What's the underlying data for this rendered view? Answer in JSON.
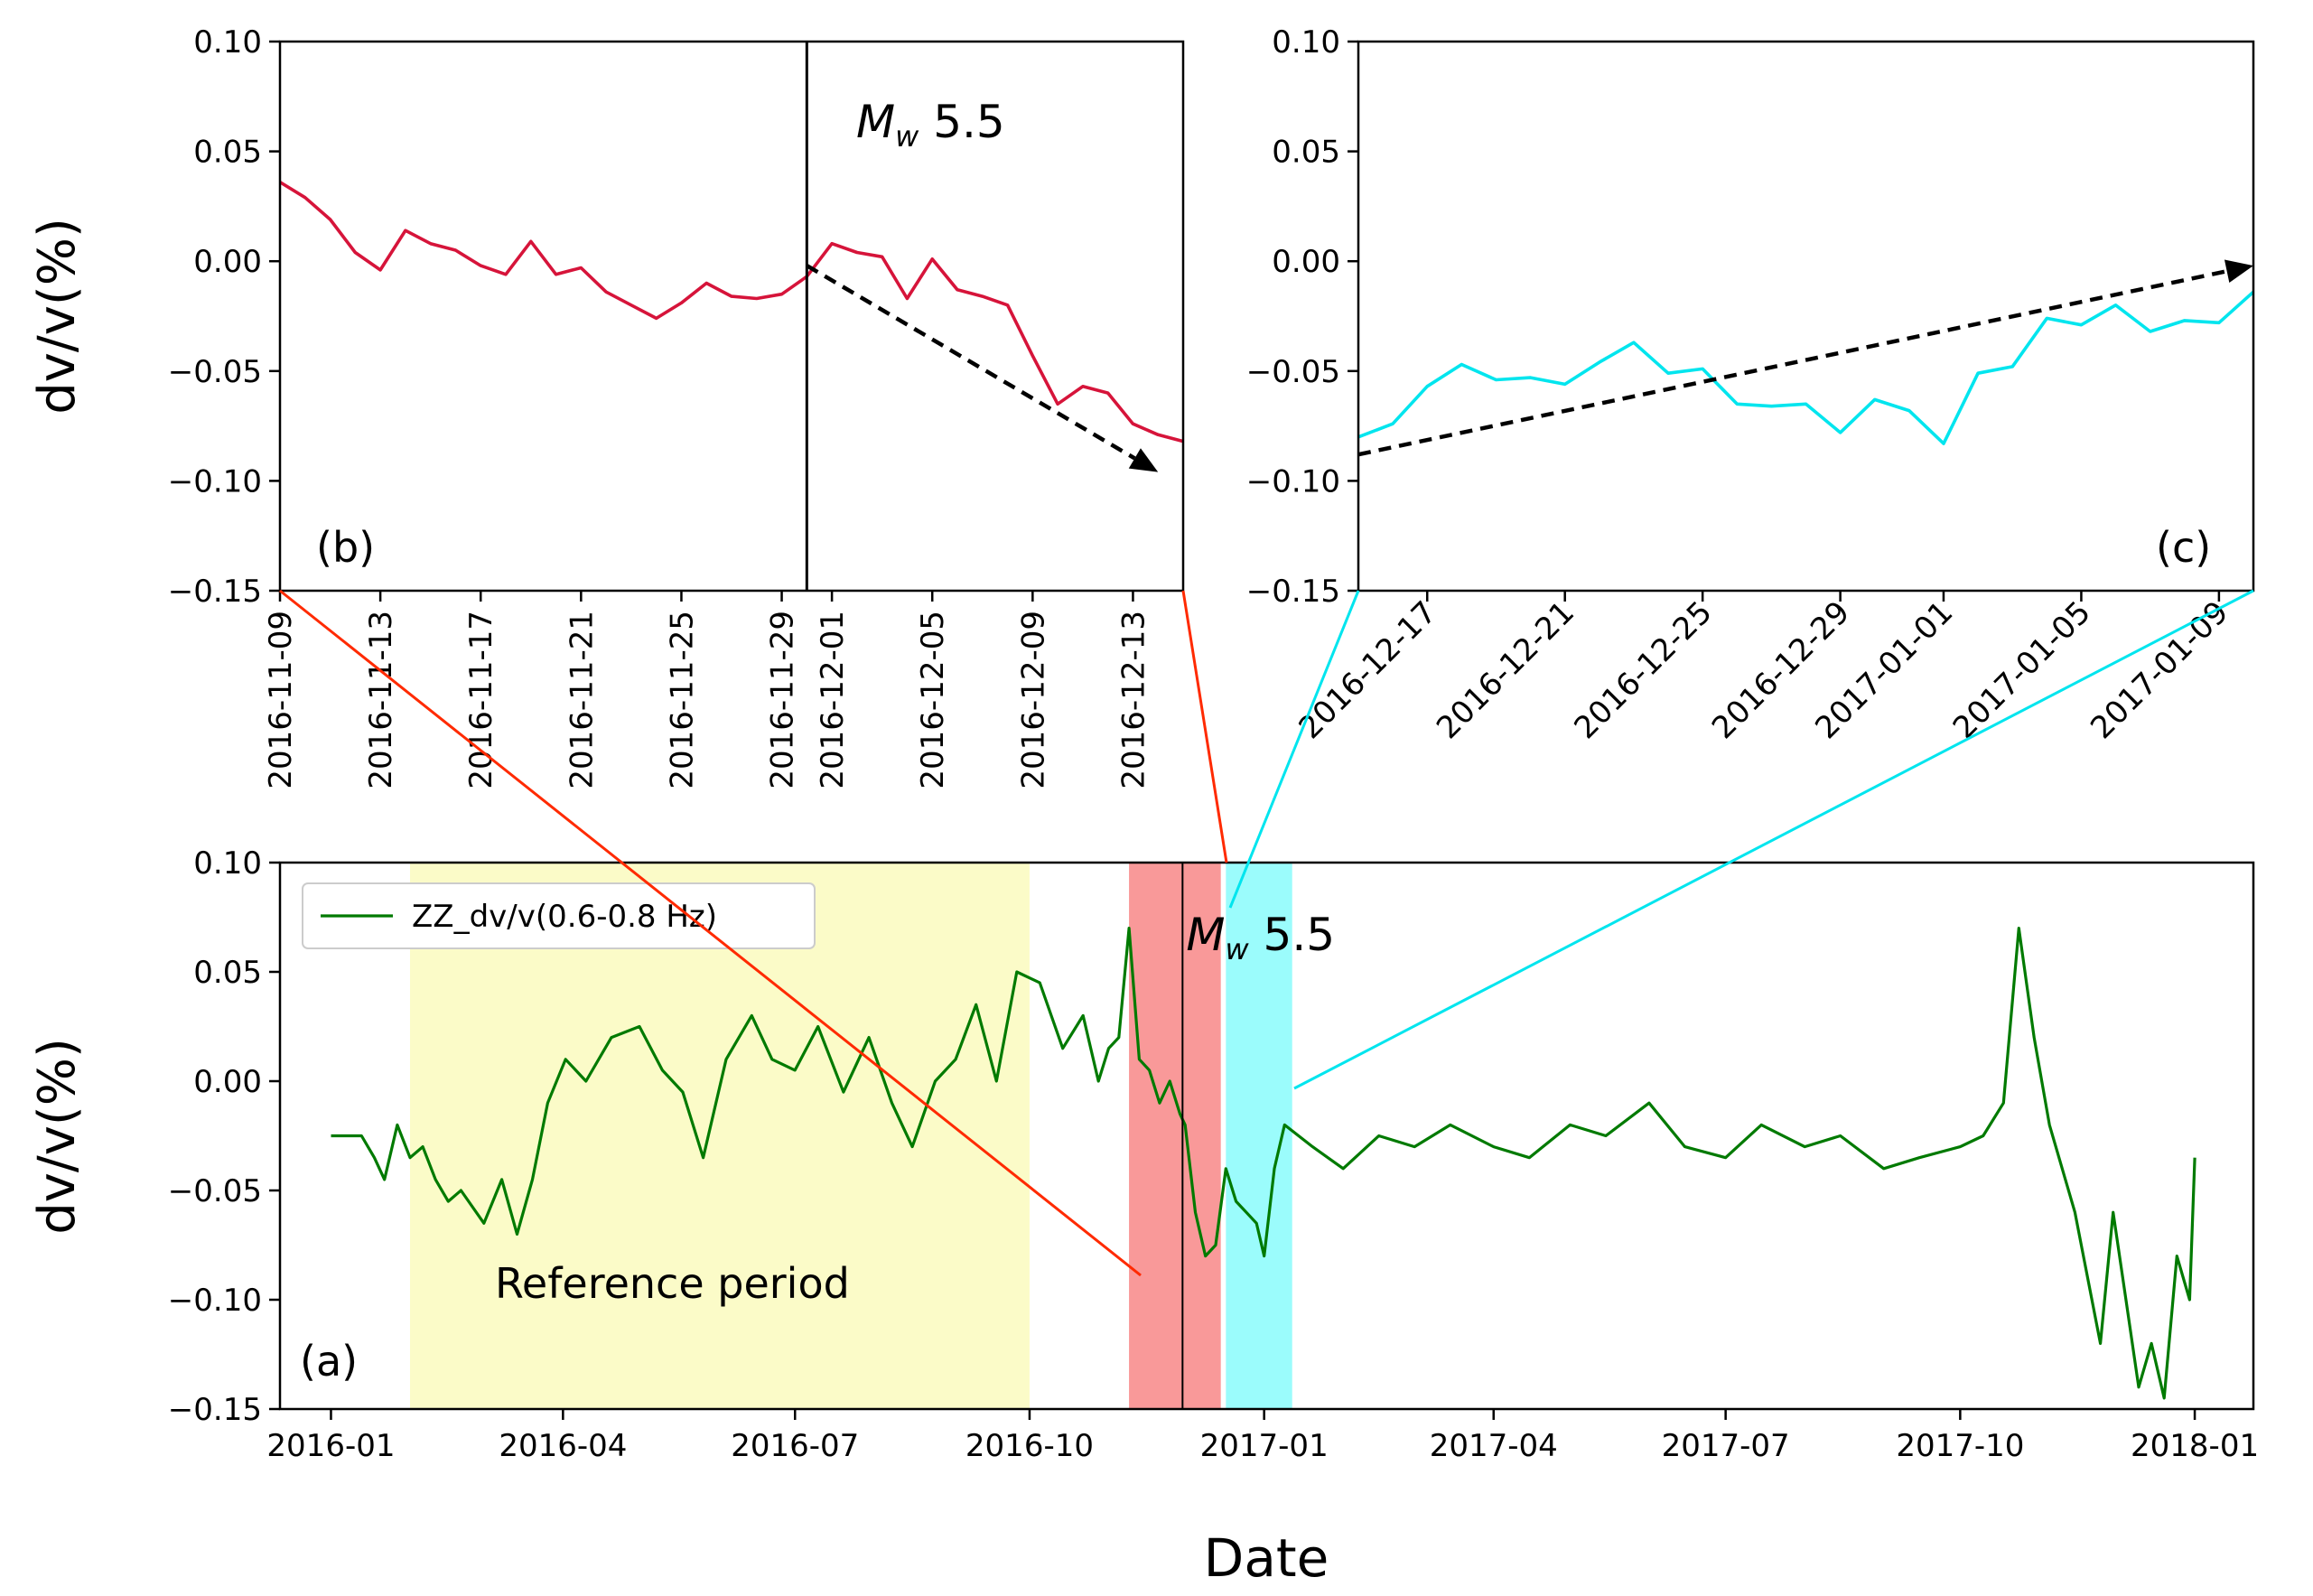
{
  "figure": {
    "xlabel": "Date",
    "ylabel_top": "dv/v(%)",
    "ylabel_bottom": "dv/v(%)"
  },
  "chart_data": [
    {
      "id": "a",
      "type": "line",
      "panel_label": "(a)",
      "ylabel": "dv/v(%)",
      "xlabel": "Date",
      "ylim": [
        -0.15,
        0.1
      ],
      "yticks": [
        0.1,
        0.05,
        0.0,
        -0.05,
        -0.1,
        -0.15
      ],
      "ytick_labels": [
        "0.10",
        "0.05",
        "0.00",
        "−0.05",
        "−0.10",
        "−0.15"
      ],
      "xlim": [
        "2015-12-12",
        "2018-01-24"
      ],
      "xticks": [
        "2016-01-01",
        "2016-04-01",
        "2016-07-01",
        "2016-10-01",
        "2017-01-01",
        "2017-04-01",
        "2017-07-01",
        "2017-10-01",
        "2018-01-01"
      ],
      "xtick_labels": [
        "2016-01",
        "2016-04",
        "2016-07",
        "2016-10",
        "2017-01",
        "2017-04",
        "2017-07",
        "2017-10",
        "2018-01"
      ],
      "legend": {
        "position": "top-left",
        "entries": [
          "ZZ_dv/v(0.6-0.8 Hz)"
        ]
      },
      "series": [
        {
          "name": "ZZ_dv/v(0.6-0.8 Hz)",
          "color": "#007a00",
          "x": [
            "2016-01-01",
            "2016-01-13",
            "2016-01-18",
            "2016-01-22",
            "2016-01-27",
            "2016-02-01",
            "2016-02-06",
            "2016-02-11",
            "2016-02-16",
            "2016-02-21",
            "2016-03-01",
            "2016-03-08",
            "2016-03-14",
            "2016-03-20",
            "2016-03-26",
            "2016-04-02",
            "2016-04-10",
            "2016-04-20",
            "2016-05-01",
            "2016-05-10",
            "2016-05-18",
            "2016-05-26",
            "2016-06-04",
            "2016-06-14",
            "2016-06-22",
            "2016-07-01",
            "2016-07-10",
            "2016-07-20",
            "2016-07-30",
            "2016-08-08",
            "2016-08-16",
            "2016-08-25",
            "2016-09-02",
            "2016-09-10",
            "2016-09-18",
            "2016-09-26",
            "2016-10-05",
            "2016-10-14",
            "2016-10-22",
            "2016-10-28",
            "2016-11-01",
            "2016-11-05",
            "2016-11-09",
            "2016-11-13",
            "2016-11-17",
            "2016-11-21",
            "2016-11-25",
            "2016-11-29",
            "2016-12-01",
            "2016-12-05",
            "2016-12-09",
            "2016-12-13",
            "2016-12-17",
            "2016-12-21",
            "2016-12-25",
            "2016-12-29",
            "2017-01-01",
            "2017-01-05",
            "2017-01-09",
            "2017-01-20",
            "2017-02-01",
            "2017-02-15",
            "2017-03-01",
            "2017-03-15",
            "2017-04-01",
            "2017-04-15",
            "2017-05-01",
            "2017-05-15",
            "2017-06-01",
            "2017-06-15",
            "2017-07-01",
            "2017-07-15",
            "2017-08-01",
            "2017-08-15",
            "2017-09-01",
            "2017-09-15",
            "2017-10-01",
            "2017-10-10",
            "2017-10-18",
            "2017-10-24",
            "2017-10-30",
            "2017-11-05",
            "2017-11-10",
            "2017-11-15",
            "2017-11-20",
            "2017-11-25",
            "2017-11-30",
            "2017-12-05",
            "2017-12-10",
            "2017-12-15",
            "2017-12-20",
            "2017-12-25",
            "2017-12-30",
            "2018-01-01"
          ],
          "y": [
            -0.025,
            -0.025,
            -0.035,
            -0.045,
            -0.02,
            -0.035,
            -0.03,
            -0.045,
            -0.055,
            -0.05,
            -0.065,
            -0.045,
            -0.07,
            -0.045,
            -0.01,
            0.01,
            0.0,
            0.02,
            0.025,
            0.005,
            -0.005,
            -0.035,
            0.01,
            0.03,
            0.01,
            0.005,
            0.025,
            -0.005,
            0.02,
            -0.01,
            -0.03,
            0.0,
            0.01,
            0.035,
            0.0,
            0.05,
            0.045,
            0.015,
            0.03,
            0.0,
            0.015,
            0.02,
            0.07,
            0.01,
            0.005,
            -0.01,
            0.0,
            -0.015,
            -0.02,
            -0.06,
            -0.08,
            -0.075,
            -0.04,
            -0.055,
            -0.06,
            -0.065,
            -0.08,
            -0.04,
            -0.02,
            -0.03,
            -0.04,
            -0.025,
            -0.03,
            -0.02,
            -0.03,
            -0.035,
            -0.02,
            -0.025,
            -0.01,
            -0.03,
            -0.035,
            -0.02,
            -0.03,
            -0.025,
            -0.04,
            -0.035,
            -0.03,
            -0.025,
            -0.01,
            0.07,
            0.02,
            -0.02,
            -0.04,
            -0.06,
            -0.09,
            -0.12,
            -0.06,
            -0.1,
            -0.14,
            -0.12,
            -0.145,
            -0.08,
            -0.1,
            -0.035
          ]
        }
      ],
      "spans": [
        {
          "label": "Reference period",
          "start": "2016-02-01",
          "end": "2016-10-01",
          "color": "#fbfbc8"
        },
        {
          "start": "2016-11-09",
          "end": "2016-12-15",
          "color": "#f99999"
        },
        {
          "start": "2016-12-17",
          "end": "2017-01-12",
          "color": "#9bfcfc"
        }
      ],
      "event": {
        "date": "2016-11-30",
        "label_main": "M",
        "label_sub": "w",
        "label_mag": " 5.5"
      }
    },
    {
      "id": "b",
      "type": "line",
      "panel_label": "(b)",
      "ylabel": "dv/v(%)",
      "ylim": [
        -0.15,
        0.1
      ],
      "yticks": [
        0.1,
        0.05,
        0.0,
        -0.05,
        -0.1,
        -0.15
      ],
      "ytick_labels": [
        "0.10",
        "0.05",
        "0.00",
        "−0.05",
        "−0.10",
        "−0.15"
      ],
      "xlim": [
        "2016-11-09",
        "2016-12-15"
      ],
      "xticks": [
        "2016-11-09",
        "2016-11-13",
        "2016-11-17",
        "2016-11-21",
        "2016-11-25",
        "2016-11-29",
        "2016-12-01",
        "2016-12-05",
        "2016-12-09",
        "2016-12-13"
      ],
      "series": [
        {
          "color": "#d6143a",
          "x": [
            "2016-11-09",
            "2016-11-10",
            "2016-11-11",
            "2016-11-12",
            "2016-11-13",
            "2016-11-14",
            "2016-11-15",
            "2016-11-16",
            "2016-11-17",
            "2016-11-18",
            "2016-11-19",
            "2016-11-20",
            "2016-11-21",
            "2016-11-22",
            "2016-11-23",
            "2016-11-24",
            "2016-11-25",
            "2016-11-26",
            "2016-11-27",
            "2016-11-28",
            "2016-11-29",
            "2016-11-30",
            "2016-12-01",
            "2016-12-02",
            "2016-12-03",
            "2016-12-04",
            "2016-12-05",
            "2016-12-06",
            "2016-12-07",
            "2016-12-08",
            "2016-12-09",
            "2016-12-10",
            "2016-12-11",
            "2016-12-12",
            "2016-12-13",
            "2016-12-14",
            "2016-12-15"
          ],
          "y": [
            0.036,
            0.029,
            0.019,
            0.004,
            -0.004,
            0.014,
            0.008,
            0.005,
            -0.002,
            -0.006,
            0.009,
            -0.006,
            -0.003,
            -0.014,
            -0.02,
            -0.026,
            -0.019,
            -0.01,
            -0.016,
            -0.017,
            -0.015,
            -0.007,
            0.008,
            0.004,
            0.002,
            -0.017,
            0.001,
            -0.013,
            -0.016,
            -0.02,
            -0.043,
            -0.065,
            -0.057,
            -0.06,
            -0.074,
            -0.079,
            -0.082
          ]
        }
      ],
      "event": {
        "date": "2016-11-30",
        "label_main": "M",
        "label_sub": "w",
        "label_mag": " 5.5"
      },
      "trend_arrow": {
        "x": [
          "2016-11-30",
          "2016-12-14"
        ],
        "y": [
          -0.002,
          -0.096
        ]
      }
    },
    {
      "id": "c",
      "type": "line",
      "panel_label": "(c)",
      "ylim": [
        -0.15,
        0.1
      ],
      "yticks": [
        0.1,
        0.05,
        0.0,
        -0.05,
        -0.1,
        -0.15
      ],
      "ytick_labels": [
        "0.10",
        "0.05",
        "0.00",
        "−0.05",
        "−0.10",
        "−0.15"
      ],
      "xlim": [
        "2016-12-15",
        "2017-01-10"
      ],
      "xticks": [
        "2016-12-17",
        "2016-12-21",
        "2016-12-25",
        "2016-12-29",
        "2017-01-01",
        "2017-01-05",
        "2017-01-09"
      ],
      "series": [
        {
          "color": "#00e5ee",
          "x": [
            "2016-12-15",
            "2016-12-16",
            "2016-12-17",
            "2016-12-18",
            "2016-12-19",
            "2016-12-20",
            "2016-12-21",
            "2016-12-22",
            "2016-12-23",
            "2016-12-24",
            "2016-12-25",
            "2016-12-26",
            "2016-12-27",
            "2016-12-28",
            "2016-12-29",
            "2016-12-30",
            "2016-12-31",
            "2017-01-01",
            "2017-01-02",
            "2017-01-03",
            "2017-01-04",
            "2017-01-05",
            "2017-01-06",
            "2017-01-07",
            "2017-01-08",
            "2017-01-09",
            "2017-01-10"
          ],
          "y": [
            -0.08,
            -0.074,
            -0.057,
            -0.047,
            -0.054,
            -0.053,
            -0.056,
            -0.046,
            -0.037,
            -0.051,
            -0.049,
            -0.065,
            -0.066,
            -0.065,
            -0.078,
            -0.063,
            -0.068,
            -0.083,
            -0.051,
            -0.048,
            -0.026,
            -0.029,
            -0.02,
            -0.032,
            -0.027,
            -0.028,
            -0.014
          ]
        }
      ],
      "trend_arrow": {
        "x": [
          "2016-12-15",
          "2017-01-10"
        ],
        "y": [
          -0.088,
          -0.002
        ]
      }
    }
  ]
}
